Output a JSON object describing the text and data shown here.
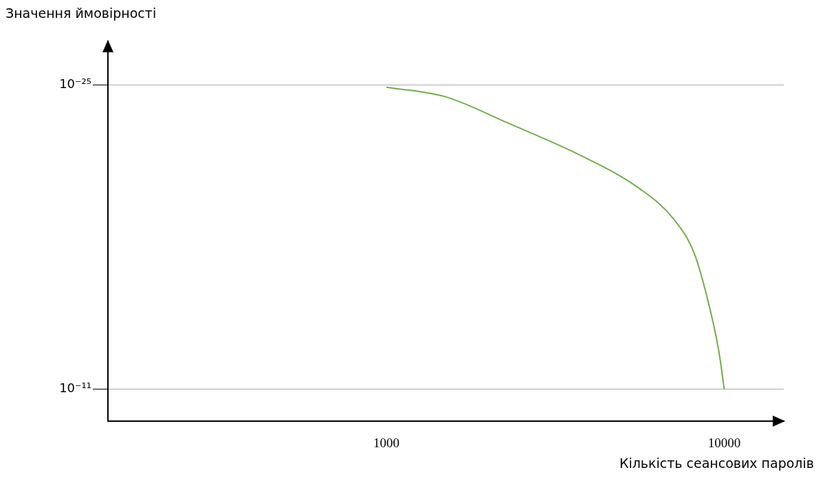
{
  "chart_data": {
    "type": "line",
    "xlabel": "Кількість сеансових паролів",
    "ylabel": "Значення ймовірності",
    "log": "xy",
    "xlim": [
      150,
      15000
    ],
    "xticks": [
      1000,
      10000
    ],
    "ylim": [
      3e-10,
      1e-27
    ],
    "yticks": [
      {
        "value": 1e-25,
        "label": "10⁻²⁵"
      },
      {
        "value": 1e-11,
        "label": "10⁻¹¹"
      }
    ],
    "grid": "y",
    "legend": false,
    "marker": "none",
    "line_style": "solid",
    "series": [
      {
        "color": "#70ad47",
        "x": [
          1000,
          1490,
          2280,
          3840,
          5600,
          7080,
          8160,
          8970,
          9630,
          10000
        ],
        "values": [
          1.3e-25,
          3.5e-25,
          5.6e-24,
          2.1e-22,
          5.8e-21,
          1.5e-19,
          6e-18,
          1e-15,
          1.7e-13,
          1e-11
        ]
      }
    ]
  }
}
